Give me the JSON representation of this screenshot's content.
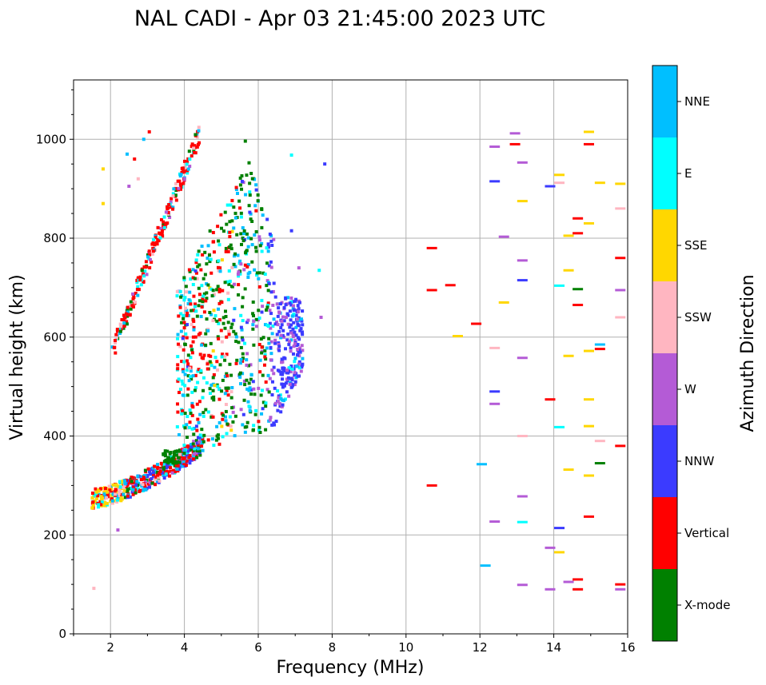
{
  "chart_data": {
    "type": "scatter",
    "title": "NAL CADI - Apr 03 21:45:00 2023 UTC",
    "xlabel": "Frequency (MHz)",
    "ylabel": "Virtual height (km)",
    "xlim": [
      1,
      16
    ],
    "ylim": [
      0,
      1120
    ],
    "xticks": [
      2,
      4,
      6,
      8,
      10,
      12,
      14,
      16
    ],
    "yticks": [
      0,
      200,
      400,
      600,
      800,
      1000
    ],
    "grid": true,
    "colorbar": {
      "title": "Azimuth Direction",
      "categories": [
        {
          "label": "X-mode",
          "color": "#008000"
        },
        {
          "label": "Vertical",
          "color": "#ff0000"
        },
        {
          "label": "NNW",
          "color": "#3b3bff"
        },
        {
          "label": "W",
          "color": "#b45bd6"
        },
        {
          "label": "SSW",
          "color": "#ffb6c1"
        },
        {
          "label": "SSE",
          "color": "#ffd700"
        },
        {
          "label": "E",
          "color": "#00ffff"
        },
        {
          "label": "NNE",
          "color": "#00bfff"
        }
      ]
    },
    "points": [
      {
        "f": 1.55,
        "h": 92,
        "c": "SSW"
      },
      {
        "f": 1.8,
        "h": 870,
        "c": "SSE"
      },
      {
        "f": 1.8,
        "h": 940,
        "c": "SSE"
      },
      {
        "f": 2.05,
        "h": 580,
        "c": "NNE"
      },
      {
        "f": 2.2,
        "h": 210,
        "c": "W"
      },
      {
        "f": 2.45,
        "h": 970,
        "c": "NNE"
      },
      {
        "f": 2.5,
        "h": 905,
        "c": "W"
      },
      {
        "f": 2.65,
        "h": 960,
        "c": "Vertical"
      },
      {
        "f": 2.75,
        "h": 920,
        "c": "SSW"
      },
      {
        "f": 2.9,
        "h": 1000,
        "c": "NNE"
      },
      {
        "f": 3.05,
        "h": 1015,
        "c": "Vertical"
      },
      {
        "f": 10.7,
        "h": 780,
        "c": "Vertical"
      },
      {
        "f": 10.7,
        "h": 695,
        "c": "Vertical"
      },
      {
        "f": 10.7,
        "h": 300,
        "c": "Vertical"
      },
      {
        "f": 11.2,
        "h": 705,
        "c": "Vertical"
      },
      {
        "f": 11.4,
        "h": 602,
        "c": "SSE"
      },
      {
        "f": 11.9,
        "h": 627,
        "c": "Vertical"
      },
      {
        "f": 12.05,
        "h": 343,
        "c": "NNE"
      },
      {
        "f": 12.15,
        "h": 138,
        "c": "NNE"
      },
      {
        "f": 12.4,
        "h": 985,
        "c": "W"
      },
      {
        "f": 12.4,
        "h": 915,
        "c": "NNW"
      },
      {
        "f": 12.4,
        "h": 578,
        "c": "SSW"
      },
      {
        "f": 12.4,
        "h": 490,
        "c": "NNW"
      },
      {
        "f": 12.4,
        "h": 465,
        "c": "W"
      },
      {
        "f": 12.4,
        "h": 227,
        "c": "W"
      },
      {
        "f": 12.65,
        "h": 803,
        "c": "W"
      },
      {
        "f": 12.65,
        "h": 670,
        "c": "SSE"
      },
      {
        "f": 12.95,
        "h": 1012,
        "c": "W"
      },
      {
        "f": 12.95,
        "h": 990,
        "c": "Vertical"
      },
      {
        "f": 13.15,
        "h": 953,
        "c": "W"
      },
      {
        "f": 13.15,
        "h": 875,
        "c": "SSE"
      },
      {
        "f": 13.15,
        "h": 755,
        "c": "W"
      },
      {
        "f": 13.15,
        "h": 715,
        "c": "NNW"
      },
      {
        "f": 13.15,
        "h": 558,
        "c": "W"
      },
      {
        "f": 13.15,
        "h": 400,
        "c": "SSW"
      },
      {
        "f": 13.15,
        "h": 278,
        "c": "W"
      },
      {
        "f": 13.15,
        "h": 226,
        "c": "E"
      },
      {
        "f": 13.15,
        "h": 99,
        "c": "W"
      },
      {
        "f": 13.9,
        "h": 905,
        "c": "NNW"
      },
      {
        "f": 13.9,
        "h": 474,
        "c": "Vertical"
      },
      {
        "f": 13.9,
        "h": 174,
        "c": "W"
      },
      {
        "f": 13.9,
        "h": 90,
        "c": "W"
      },
      {
        "f": 14.15,
        "h": 928,
        "c": "SSE"
      },
      {
        "f": 14.15,
        "h": 912,
        "c": "SSW"
      },
      {
        "f": 14.15,
        "h": 704,
        "c": "E"
      },
      {
        "f": 14.15,
        "h": 418,
        "c": "E"
      },
      {
        "f": 14.15,
        "h": 214,
        "c": "NNW"
      },
      {
        "f": 14.15,
        "h": 165,
        "c": "SSE"
      },
      {
        "f": 14.4,
        "h": 805,
        "c": "SSE"
      },
      {
        "f": 14.4,
        "h": 735,
        "c": "SSE"
      },
      {
        "f": 14.4,
        "h": 562,
        "c": "SSE"
      },
      {
        "f": 14.4,
        "h": 332,
        "c": "SSE"
      },
      {
        "f": 14.4,
        "h": 105,
        "c": "W"
      },
      {
        "f": 14.65,
        "h": 840,
        "c": "Vertical"
      },
      {
        "f": 14.65,
        "h": 810,
        "c": "Vertical"
      },
      {
        "f": 14.65,
        "h": 697,
        "c": "X-mode"
      },
      {
        "f": 14.65,
        "h": 665,
        "c": "Vertical"
      },
      {
        "f": 14.65,
        "h": 110,
        "c": "Vertical"
      },
      {
        "f": 14.65,
        "h": 90,
        "c": "Vertical"
      },
      {
        "f": 14.95,
        "h": 1015,
        "c": "SSE"
      },
      {
        "f": 14.95,
        "h": 990,
        "c": "Vertical"
      },
      {
        "f": 14.95,
        "h": 830,
        "c": "SSE"
      },
      {
        "f": 14.95,
        "h": 572,
        "c": "SSE"
      },
      {
        "f": 14.95,
        "h": 474,
        "c": "SSE"
      },
      {
        "f": 14.95,
        "h": 420,
        "c": "SSE"
      },
      {
        "f": 14.95,
        "h": 320,
        "c": "SSE"
      },
      {
        "f": 14.95,
        "h": 237,
        "c": "Vertical"
      },
      {
        "f": 15.25,
        "h": 912,
        "c": "SSE"
      },
      {
        "f": 15.25,
        "h": 585,
        "c": "NNE"
      },
      {
        "f": 15.25,
        "h": 576,
        "c": "Vertical"
      },
      {
        "f": 15.25,
        "h": 390,
        "c": "SSW"
      },
      {
        "f": 15.25,
        "h": 345,
        "c": "X-mode"
      },
      {
        "f": 15.8,
        "h": 910,
        "c": "SSE"
      },
      {
        "f": 15.8,
        "h": 860,
        "c": "SSW"
      },
      {
        "f": 15.8,
        "h": 760,
        "c": "Vertical"
      },
      {
        "f": 15.8,
        "h": 695,
        "c": "W"
      },
      {
        "f": 15.8,
        "h": 640,
        "c": "SSW"
      },
      {
        "f": 15.8,
        "h": 380,
        "c": "Vertical"
      },
      {
        "f": 15.8,
        "h": 100,
        "c": "Vertical"
      },
      {
        "f": 15.8,
        "h": 90,
        "c": "W"
      },
      {
        "f": 7.1,
        "h": 740,
        "c": "W"
      },
      {
        "f": 7.65,
        "h": 735,
        "c": "E"
      },
      {
        "f": 7.7,
        "h": 640,
        "c": "W"
      },
      {
        "f": 7.8,
        "h": 950,
        "c": "NNW"
      },
      {
        "f": 6.9,
        "h": 968,
        "c": "E"
      },
      {
        "f": 6.9,
        "h": 815,
        "c": "NNW"
      }
    ]
  }
}
